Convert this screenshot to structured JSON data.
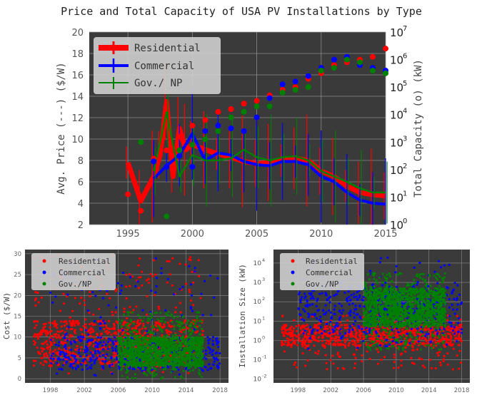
{
  "colors": {
    "panel_bg": "#3a3a3a",
    "grid": "#8c8c8c",
    "residential": "#ff0000",
    "commercial": "#0000ff",
    "gov_np": "#008000",
    "legend_bg": "#c8c8c8"
  },
  "chart_data": [
    {
      "type": "line",
      "title": "Price and Total Capacity of USA PV Installations by Type",
      "ylabel": "Avg. Price (---) ($/W)",
      "y2label": "Total Capacity (o) (kW)",
      "xlim": [
        1992,
        2015
      ],
      "ylim": [
        2,
        20
      ],
      "y2lim_log10": [
        0,
        7
      ],
      "grid": true,
      "legend_placement": "top-left",
      "x_ticks": [
        "1995",
        "2000",
        "2005",
        "2010",
        "2015"
      ],
      "y_ticks": [
        "2",
        "4",
        "6",
        "8",
        "10",
        "12",
        "14",
        "16",
        "18",
        "20"
      ],
      "y2_ticks": [
        "10",
        "10",
        "10",
        "10",
        "10",
        "10",
        "10",
        "10"
      ],
      "y2_tick_exponents": [
        "0",
        "1",
        "2",
        "3",
        "4",
        "5",
        "6",
        "7"
      ],
      "series": [
        {
          "name": "Residential",
          "color": "#ff0000",
          "price_x": [
            1995,
            1996,
            1997,
            1997.5,
            1998,
            1998.5,
            1999,
            1999.5,
            2000,
            2001,
            2002,
            2003,
            2004,
            2005,
            2006,
            2007,
            2008,
            2009,
            2010,
            2011,
            2012,
            2013,
            2014,
            2015
          ],
          "price_y": [
            7.8,
            4.2,
            6.5,
            8.5,
            13.5,
            6.5,
            11.0,
            9.0,
            9.5,
            9.0,
            8.6,
            8.3,
            7.9,
            7.7,
            7.8,
            8.0,
            8.2,
            8.0,
            7.0,
            6.5,
            5.6,
            5.0,
            4.8,
            4.7
          ],
          "capacity_x": [
            1995,
            1996,
            1997,
            1998,
            1999,
            2000,
            2001,
            2002,
            2003,
            2004,
            2005,
            2006,
            2007,
            2008,
            2009,
            2010,
            2011,
            2012,
            2013,
            2014,
            2015
          ],
          "capacity_log10": [
            1.1,
            0.5,
            2.4,
            2.7,
            3.2,
            3.6,
            3.8,
            4.1,
            4.2,
            4.4,
            4.5,
            4.7,
            4.9,
            5.0,
            5.3,
            5.5,
            5.8,
            5.9,
            6.0,
            6.1,
            6.4
          ]
        },
        {
          "name": "Commercial",
          "color": "#0000ff",
          "price_x": [
            1997,
            1998,
            1999,
            2000,
            2001,
            2002,
            2003,
            2004,
            2005,
            2006,
            2007,
            2008,
            2009,
            2010,
            2011,
            2012,
            2013,
            2014,
            2015
          ],
          "price_y": [
            6.3,
            7.5,
            8.5,
            10.5,
            8.0,
            8.7,
            8.5,
            7.9,
            7.6,
            7.5,
            7.9,
            7.9,
            7.6,
            6.5,
            6.0,
            5.0,
            4.3,
            4.0,
            3.9
          ],
          "capacity_x": [
            1997,
            1998,
            1999,
            2000,
            2001,
            2002,
            2003,
            2004,
            2005,
            2006,
            2007,
            2008,
            2009,
            2010,
            2011,
            2012,
            2013,
            2014,
            2015
          ],
          "capacity_log10": [
            2.3,
            2.1,
            2.5,
            2.1,
            3.4,
            3.6,
            3.5,
            3.4,
            3.9,
            4.6,
            5.1,
            5.2,
            5.4,
            5.7,
            6.0,
            6.1,
            5.8,
            5.7,
            5.6
          ]
        },
        {
          "name": "Gov./ NP",
          "color": "#008000",
          "price_x": [
            1997,
            1998,
            1999,
            2000,
            2001,
            2002,
            2003,
            2004,
            2005,
            2006,
            2007,
            2008,
            2009,
            2010,
            2011,
            2012,
            2013,
            2014,
            2015
          ],
          "price_y": [
            7.0,
            12.5,
            6.5,
            8.5,
            8.0,
            8.0,
            8.2,
            9.0,
            8.3,
            8.0,
            8.3,
            8.4,
            8.0,
            7.0,
            6.5,
            6.0,
            5.4,
            5.0,
            5.0
          ],
          "capacity_x": [
            1996,
            1998,
            1999,
            2000,
            2001,
            2002,
            2003,
            2004,
            2005,
            2006,
            2007,
            2008,
            2009,
            2010,
            2011,
            2012,
            2013,
            2014,
            2015
          ],
          "capacity_log10": [
            3.0,
            0.3,
            2.7,
            2.9,
            3.1,
            3.4,
            3.9,
            4.1,
            4.3,
            4.3,
            4.8,
            4.9,
            5.0,
            5.6,
            5.7,
            6.0,
            5.9,
            5.6,
            5.5
          ]
        }
      ]
    },
    {
      "type": "scatter",
      "ylabel": "Cost ($/W)",
      "xlim": [
        1995,
        2019
      ],
      "ylim": [
        -1,
        31
      ],
      "grid": true,
      "legend_placement": "top-left",
      "x_ticks": [
        "1998",
        "2002",
        "2006",
        "2010",
        "2014",
        "2018"
      ],
      "y_ticks": [
        "0",
        "5",
        "10",
        "15",
        "20",
        "25",
        "30"
      ],
      "series": [
        {
          "name": "Residential",
          "color": "#ff0000",
          "x_range": [
            1996,
            2016
          ],
          "y_range": [
            1,
            30
          ],
          "dense_range": [
            3,
            14
          ]
        },
        {
          "name": "Commercial",
          "color": "#0000ff",
          "x_range": [
            1998,
            2018
          ],
          "y_range": [
            0,
            29
          ],
          "dense_range": [
            2,
            10
          ]
        },
        {
          "name": "Gov./NP",
          "color": "#008000",
          "x_range": [
            2006,
            2016
          ],
          "y_range": [
            0,
            16
          ],
          "dense_range": [
            3,
            10
          ]
        }
      ]
    },
    {
      "type": "scatter",
      "ylabel": "Installation Size (kW)",
      "y_scale": "log",
      "xlim": [
        1995,
        2019
      ],
      "ylim_log10": [
        -2.2,
        4.7
      ],
      "grid": true,
      "legend_placement": "top-left",
      "x_ticks": [
        "1998",
        "2002",
        "2006",
        "2010",
        "2014",
        "2018"
      ],
      "y_ticks": [
        "10",
        "10",
        "10",
        "10",
        "10",
        "10",
        "10"
      ],
      "y_tick_exponents": [
        "-2",
        "-1",
        "0",
        "1",
        "2",
        "3",
        "4"
      ],
      "series": [
        {
          "name": "Residential",
          "color": "#ff0000",
          "x_range": [
            1996,
            2018
          ],
          "y_range_log10": [
            -1.5,
            1.3
          ],
          "dense_range_log10": [
            -0.3,
            0.8
          ]
        },
        {
          "name": "Commercial",
          "color": "#0000ff",
          "x_range": [
            1998,
            2018
          ],
          "y_range_log10": [
            -0.5,
            4.3
          ],
          "dense_range_log10": [
            0.3,
            3.0
          ]
        },
        {
          "name": "Gov./NP",
          "color": "#008000",
          "x_range": [
            2006,
            2016
          ],
          "y_range_log10": [
            -0.5,
            3.5
          ],
          "dense_range_log10": [
            0.7,
            2.7
          ]
        }
      ]
    }
  ]
}
